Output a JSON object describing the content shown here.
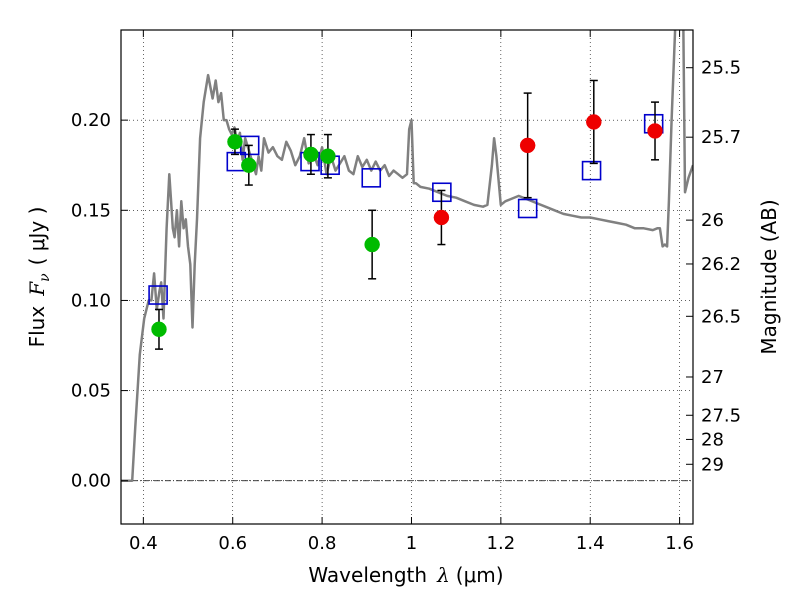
{
  "chart_data": {
    "type": "scatter",
    "title": "",
    "xlabel": "Wavelength",
    "xlabel_symbol": "λ",
    "xlabel_unit": "(μm)",
    "ylabel": "Flux",
    "ylabel_symbol": "F",
    "ylabel_subscript": "ν",
    "ylabel_unit": "( μJy )",
    "y2label": "Magnitude (AB)",
    "xlim": [
      0.35,
      1.63
    ],
    "ylim": [
      -0.024,
      0.25
    ],
    "grid": true,
    "x_ticks": [
      "0.4",
      "0.6",
      "0.8",
      "1",
      "1.2",
      "1.4",
      "1.6"
    ],
    "y_ticks": [
      "0.00",
      "0.05",
      "0.10",
      "0.15",
      "0.20"
    ],
    "y2_ticks": [
      "25.5",
      "25.7",
      "26",
      "26.2",
      "26.5",
      "27",
      "27.5",
      "28",
      "29"
    ],
    "model_spectrum": {
      "color": "#808080",
      "x": [
        0.35,
        0.375,
        0.382,
        0.392,
        0.402,
        0.412,
        0.418,
        0.424,
        0.43,
        0.436,
        0.44,
        0.445,
        0.452,
        0.458,
        0.462,
        0.466,
        0.47,
        0.475,
        0.48,
        0.485,
        0.49,
        0.495,
        0.5,
        0.505,
        0.51,
        0.515,
        0.52,
        0.527,
        0.535,
        0.545,
        0.555,
        0.562,
        0.568,
        0.574,
        0.58,
        0.586,
        0.592,
        0.598,
        0.604,
        0.61,
        0.616,
        0.622,
        0.628,
        0.634,
        0.64,
        0.646,
        0.652,
        0.658,
        0.664,
        0.67,
        0.68,
        0.69,
        0.7,
        0.71,
        0.72,
        0.73,
        0.74,
        0.75,
        0.76,
        0.77,
        0.78,
        0.79,
        0.8,
        0.81,
        0.82,
        0.83,
        0.84,
        0.85,
        0.86,
        0.87,
        0.88,
        0.89,
        0.9,
        0.91,
        0.92,
        0.93,
        0.94,
        0.95,
        0.96,
        0.97,
        0.98,
        0.99,
        0.995,
        1.0,
        1.005,
        1.01,
        1.02,
        1.04,
        1.06,
        1.08,
        1.1,
        1.12,
        1.14,
        1.16,
        1.17,
        1.18,
        1.185,
        1.19,
        1.2,
        1.21,
        1.22,
        1.24,
        1.26,
        1.28,
        1.3,
        1.32,
        1.34,
        1.36,
        1.38,
        1.4,
        1.42,
        1.44,
        1.46,
        1.48,
        1.5,
        1.52,
        1.54,
        1.55,
        1.556,
        1.562,
        1.567,
        1.572,
        1.576,
        1.582,
        1.59,
        1.6,
        1.608,
        1.612,
        1.62,
        1.63
      ],
      "y": [
        0.0,
        0.0,
        0.03,
        0.07,
        0.09,
        0.1,
        0.1,
        0.115,
        0.095,
        0.105,
        0.11,
        0.09,
        0.14,
        0.17,
        0.155,
        0.14,
        0.135,
        0.15,
        0.13,
        0.155,
        0.14,
        0.145,
        0.13,
        0.12,
        0.085,
        0.12,
        0.145,
        0.19,
        0.21,
        0.225,
        0.212,
        0.222,
        0.21,
        0.215,
        0.2,
        0.2,
        0.195,
        0.192,
        0.196,
        0.188,
        0.193,
        0.178,
        0.19,
        0.185,
        0.18,
        0.175,
        0.17,
        0.18,
        0.172,
        0.19,
        0.182,
        0.185,
        0.18,
        0.178,
        0.188,
        0.183,
        0.175,
        0.18,
        0.19,
        0.176,
        0.182,
        0.175,
        0.185,
        0.17,
        0.18,
        0.172,
        0.176,
        0.18,
        0.172,
        0.17,
        0.18,
        0.174,
        0.178,
        0.172,
        0.177,
        0.172,
        0.175,
        0.169,
        0.172,
        0.17,
        0.168,
        0.17,
        0.195,
        0.2,
        0.165,
        0.165,
        0.163,
        0.162,
        0.16,
        0.158,
        0.157,
        0.155,
        0.153,
        0.152,
        0.153,
        0.175,
        0.19,
        0.18,
        0.153,
        0.155,
        0.156,
        0.158,
        0.156,
        0.154,
        0.152,
        0.15,
        0.148,
        0.147,
        0.146,
        0.146,
        0.145,
        0.144,
        0.143,
        0.142,
        0.14,
        0.14,
        0.139,
        0.14,
        0.14,
        0.13,
        0.131,
        0.13,
        0.155,
        0.2,
        0.25,
        0.26,
        0.26,
        0.16,
        0.168,
        0.175
      ]
    },
    "series": [
      {
        "color": "#00bb00",
        "x": [
          0.435,
          0.605,
          0.636,
          0.775,
          0.813,
          0.912
        ],
        "y": [
          0.084,
          0.188,
          0.175,
          0.181,
          0.18,
          0.131
        ],
        "yerr": [
          0.011,
          0.007,
          0.011,
          0.011,
          0.012,
          0.019
        ]
      },
      {
        "color": "#ee0000",
        "x": [
          1.067,
          1.26,
          1.408,
          1.545
        ],
        "y": [
          0.146,
          0.186,
          0.199,
          0.194
        ],
        "yerr": [
          0.015,
          0.029,
          0.023,
          0.016
        ]
      },
      {
        "color": "#0000cc",
        "x": [
          0.433,
          0.608,
          0.638,
          0.773,
          0.818,
          0.91,
          1.068,
          1.26,
          1.403,
          1.542
        ],
        "y": [
          0.103,
          0.177,
          0.186,
          0.177,
          0.175,
          0.168,
          0.16,
          0.151,
          0.172,
          0.198
        ]
      }
    ]
  }
}
